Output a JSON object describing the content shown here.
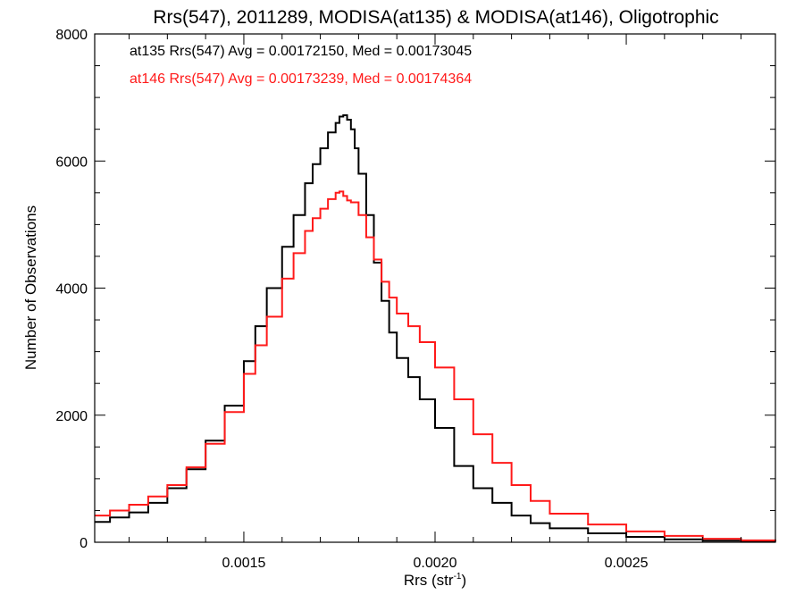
{
  "chart_data": {
    "type": "line",
    "title": "Rrs(547), 2011289, MODISA(at135) & MODISA(at146), Oligotrophic",
    "xlabel": "Rrs (str",
    "xlabel_sup": "-1",
    "xlabel_end": ")",
    "ylabel": "Number of Observations",
    "xlim": [
      0.00111,
      0.00289
    ],
    "ylim": [
      0,
      8000
    ],
    "x_ticks": [
      0.0015,
      0.002,
      0.0025
    ],
    "x_tick_labels": [
      "0.0015",
      "0.0020",
      "0.0025"
    ],
    "y_ticks": [
      0,
      2000,
      4000,
      6000,
      8000
    ],
    "y_tick_labels": [
      "0",
      "2000",
      "4000",
      "6000",
      "8000"
    ],
    "step_style": "histogram",
    "series": [
      {
        "name": "at135",
        "color": "#000000",
        "legend": "at135 Rrs(547) Avg = 0.00172150, Med = 0.00173045",
        "x": [
          0.00111,
          0.00115,
          0.0012,
          0.00125,
          0.0013,
          0.00135,
          0.0014,
          0.00145,
          0.0015,
          0.00153,
          0.00156,
          0.0016,
          0.00163,
          0.00166,
          0.00168,
          0.0017,
          0.00172,
          0.00174,
          0.00175,
          0.00176,
          0.00177,
          0.00178,
          0.00179,
          0.0018,
          0.00182,
          0.00184,
          0.00186,
          0.00188,
          0.0019,
          0.00193,
          0.00196,
          0.002,
          0.00205,
          0.0021,
          0.00215,
          0.0022,
          0.00225,
          0.0023,
          0.0024,
          0.0025,
          0.0026,
          0.0027,
          0.0028,
          0.00289
        ],
        "y": [
          320,
          390,
          470,
          620,
          850,
          1150,
          1600,
          2150,
          2850,
          3400,
          4000,
          4650,
          5150,
          5650,
          5950,
          6200,
          6450,
          6600,
          6700,
          6720,
          6650,
          6500,
          6200,
          5800,
          5150,
          4400,
          3800,
          3300,
          2900,
          2600,
          2250,
          1800,
          1200,
          850,
          620,
          420,
          300,
          220,
          140,
          85,
          45,
          25,
          15,
          10
        ]
      },
      {
        "name": "at146",
        "color": "#ff1a1a",
        "legend": "at146 Rrs(547) Avg = 0.00173239, Med = 0.00174364",
        "x": [
          0.00111,
          0.00115,
          0.0012,
          0.00125,
          0.0013,
          0.00135,
          0.0014,
          0.00145,
          0.0015,
          0.00153,
          0.00156,
          0.0016,
          0.00163,
          0.00166,
          0.00168,
          0.0017,
          0.00172,
          0.00174,
          0.00175,
          0.00176,
          0.00177,
          0.00178,
          0.0018,
          0.00182,
          0.00184,
          0.00186,
          0.00188,
          0.0019,
          0.00193,
          0.00196,
          0.002,
          0.00205,
          0.0021,
          0.00215,
          0.0022,
          0.00225,
          0.0023,
          0.0024,
          0.0025,
          0.0026,
          0.0027,
          0.0028,
          0.00289
        ],
        "y": [
          420,
          500,
          590,
          720,
          900,
          1180,
          1550,
          2050,
          2650,
          3100,
          3550,
          4150,
          4550,
          4900,
          5100,
          5250,
          5400,
          5500,
          5520,
          5450,
          5380,
          5350,
          5150,
          4800,
          4450,
          4100,
          3850,
          3600,
          3400,
          3150,
          2750,
          2250,
          1700,
          1250,
          900,
          650,
          450,
          280,
          170,
          100,
          55,
          30,
          20
        ]
      }
    ]
  }
}
